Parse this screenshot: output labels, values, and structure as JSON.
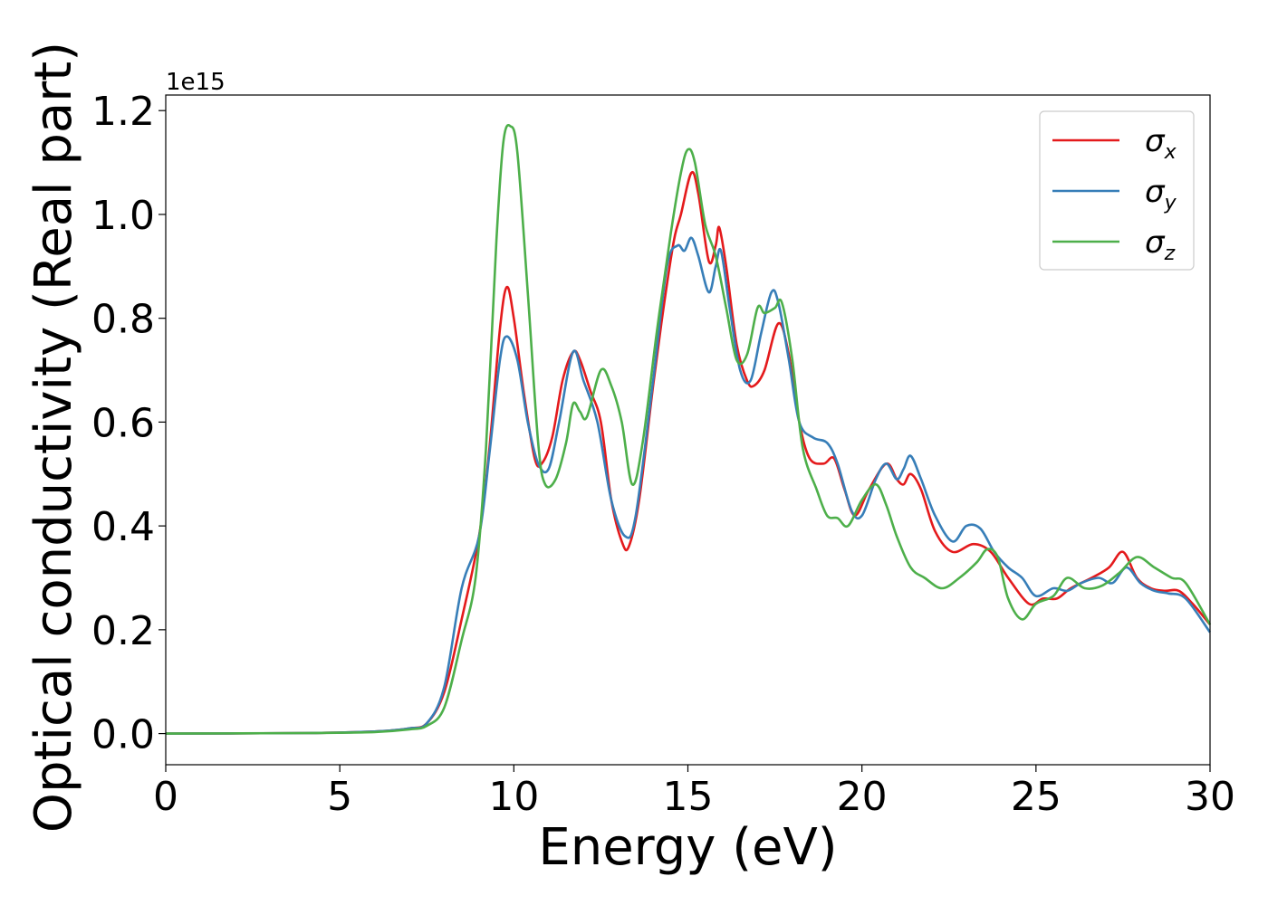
{
  "chart_data": {
    "type": "line",
    "xlabel": "Energy (eV)",
    "ylabel": "Optical conductivity (Real part)",
    "y_offset_label": "1e15",
    "xlim": [
      0,
      30
    ],
    "ylim": [
      -0.06,
      1.23
    ],
    "x_ticks": [
      0,
      5,
      10,
      15,
      20,
      25,
      30
    ],
    "y_ticks": [
      0.0,
      0.2,
      0.4,
      0.6,
      0.8,
      1.0,
      1.2
    ],
    "x_tick_labels": [
      "0",
      "5",
      "10",
      "15",
      "20",
      "25",
      "30"
    ],
    "y_tick_labels": [
      "0.0",
      "0.2",
      "0.4",
      "0.6",
      "0.8",
      "1.0",
      "1.2"
    ],
    "grid": false,
    "legend_position": "top-right",
    "series": [
      {
        "name": "σx",
        "base": "σ",
        "sub": "x",
        "color": "#e41a1c",
        "points": [
          [
            0,
            0
          ],
          [
            4,
            0.001
          ],
          [
            6,
            0.004
          ],
          [
            7,
            0.01
          ],
          [
            7.5,
            0.02
          ],
          [
            8,
            0.08
          ],
          [
            8.5,
            0.22
          ],
          [
            9,
            0.38
          ],
          [
            9.3,
            0.55
          ],
          [
            9.6,
            0.78
          ],
          [
            9.8,
            0.86
          ],
          [
            10,
            0.8
          ],
          [
            10.3,
            0.65
          ],
          [
            10.6,
            0.53
          ],
          [
            10.8,
            0.52
          ],
          [
            11.1,
            0.57
          ],
          [
            11.4,
            0.68
          ],
          [
            11.7,
            0.735
          ],
          [
            11.9,
            0.72
          ],
          [
            12.2,
            0.66
          ],
          [
            12.5,
            0.6
          ],
          [
            12.8,
            0.45
          ],
          [
            13.1,
            0.37
          ],
          [
            13.3,
            0.36
          ],
          [
            13.6,
            0.45
          ],
          [
            14,
            0.67
          ],
          [
            14.3,
            0.82
          ],
          [
            14.6,
            0.95
          ],
          [
            14.8,
            1.0
          ],
          [
            15.1,
            1.08
          ],
          [
            15.3,
            1.04
          ],
          [
            15.6,
            0.91
          ],
          [
            15.8,
            0.94
          ],
          [
            15.9,
            0.975
          ],
          [
            16.1,
            0.9
          ],
          [
            16.4,
            0.75
          ],
          [
            16.7,
            0.68
          ],
          [
            16.9,
            0.67
          ],
          [
            17.2,
            0.7
          ],
          [
            17.6,
            0.79
          ],
          [
            17.9,
            0.73
          ],
          [
            18.2,
            0.6
          ],
          [
            18.5,
            0.53
          ],
          [
            18.9,
            0.52
          ],
          [
            19.2,
            0.53
          ],
          [
            19.5,
            0.47
          ],
          [
            19.8,
            0.42
          ],
          [
            20.2,
            0.47
          ],
          [
            20.7,
            0.52
          ],
          [
            21.0,
            0.49
          ],
          [
            21.2,
            0.48
          ],
          [
            21.4,
            0.5
          ],
          [
            21.7,
            0.47
          ],
          [
            22.1,
            0.39
          ],
          [
            22.6,
            0.35
          ],
          [
            23.2,
            0.365
          ],
          [
            23.7,
            0.35
          ],
          [
            24.2,
            0.3
          ],
          [
            24.8,
            0.25
          ],
          [
            25.2,
            0.26
          ],
          [
            25.6,
            0.26
          ],
          [
            26,
            0.28
          ],
          [
            26.6,
            0.3
          ],
          [
            27.1,
            0.32
          ],
          [
            27.5,
            0.35
          ],
          [
            27.9,
            0.3
          ],
          [
            28.3,
            0.28
          ],
          [
            28.7,
            0.275
          ],
          [
            29.1,
            0.275
          ],
          [
            29.5,
            0.25
          ],
          [
            30,
            0.21
          ]
        ]
      },
      {
        "name": "σy",
        "base": "σ",
        "sub": "y",
        "color": "#377eb8",
        "points": [
          [
            0,
            0
          ],
          [
            4,
            0.001
          ],
          [
            6,
            0.004
          ],
          [
            7,
            0.01
          ],
          [
            7.5,
            0.02
          ],
          [
            8,
            0.09
          ],
          [
            8.5,
            0.28
          ],
          [
            9,
            0.38
          ],
          [
            9.3,
            0.54
          ],
          [
            9.6,
            0.72
          ],
          [
            9.8,
            0.765
          ],
          [
            10.1,
            0.72
          ],
          [
            10.4,
            0.6
          ],
          [
            10.7,
            0.52
          ],
          [
            11,
            0.51
          ],
          [
            11.3,
            0.6
          ],
          [
            11.7,
            0.735
          ],
          [
            12,
            0.68
          ],
          [
            12.4,
            0.6
          ],
          [
            12.8,
            0.45
          ],
          [
            13.2,
            0.38
          ],
          [
            13.5,
            0.42
          ],
          [
            14,
            0.68
          ],
          [
            14.4,
            0.9
          ],
          [
            14.7,
            0.94
          ],
          [
            14.9,
            0.93
          ],
          [
            15.1,
            0.955
          ],
          [
            15.3,
            0.92
          ],
          [
            15.6,
            0.85
          ],
          [
            15.8,
            0.9
          ],
          [
            15.95,
            0.93
          ],
          [
            16.2,
            0.82
          ],
          [
            16.5,
            0.7
          ],
          [
            16.8,
            0.68
          ],
          [
            17.1,
            0.77
          ],
          [
            17.4,
            0.85
          ],
          [
            17.6,
            0.83
          ],
          [
            17.9,
            0.72
          ],
          [
            18.2,
            0.6
          ],
          [
            18.6,
            0.57
          ],
          [
            19,
            0.56
          ],
          [
            19.3,
            0.52
          ],
          [
            19.7,
            0.43
          ],
          [
            20,
            0.42
          ],
          [
            20.4,
            0.49
          ],
          [
            20.7,
            0.52
          ],
          [
            21,
            0.49
          ],
          [
            21.2,
            0.51
          ],
          [
            21.4,
            0.535
          ],
          [
            21.7,
            0.49
          ],
          [
            22.1,
            0.42
          ],
          [
            22.6,
            0.37
          ],
          [
            23,
            0.4
          ],
          [
            23.4,
            0.395
          ],
          [
            23.8,
            0.35
          ],
          [
            24.2,
            0.32
          ],
          [
            24.6,
            0.3
          ],
          [
            25,
            0.265
          ],
          [
            25.5,
            0.28
          ],
          [
            25.9,
            0.275
          ],
          [
            26.3,
            0.29
          ],
          [
            26.8,
            0.3
          ],
          [
            27.2,
            0.29
          ],
          [
            27.6,
            0.32
          ],
          [
            28,
            0.29
          ],
          [
            28.4,
            0.275
          ],
          [
            28.8,
            0.27
          ],
          [
            29.3,
            0.26
          ],
          [
            30,
            0.195
          ]
        ]
      },
      {
        "name": "σz",
        "base": "σ",
        "sub": "z",
        "color": "#4daf4a",
        "points": [
          [
            0,
            0
          ],
          [
            4,
            0.001
          ],
          [
            6,
            0.003
          ],
          [
            7,
            0.008
          ],
          [
            7.5,
            0.015
          ],
          [
            8,
            0.05
          ],
          [
            8.5,
            0.18
          ],
          [
            8.9,
            0.3
          ],
          [
            9.2,
            0.55
          ],
          [
            9.5,
            0.95
          ],
          [
            9.7,
            1.14
          ],
          [
            9.9,
            1.17
          ],
          [
            10.1,
            1.12
          ],
          [
            10.4,
            0.85
          ],
          [
            10.7,
            0.56
          ],
          [
            10.9,
            0.48
          ],
          [
            11.2,
            0.49
          ],
          [
            11.5,
            0.56
          ],
          [
            11.7,
            0.635
          ],
          [
            11.9,
            0.62
          ],
          [
            12.1,
            0.61
          ],
          [
            12.5,
            0.7
          ],
          [
            12.8,
            0.67
          ],
          [
            13.1,
            0.6
          ],
          [
            13.4,
            0.48
          ],
          [
            13.7,
            0.56
          ],
          [
            14.1,
            0.77
          ],
          [
            14.5,
            0.96
          ],
          [
            14.8,
            1.08
          ],
          [
            15,
            1.125
          ],
          [
            15.2,
            1.1
          ],
          [
            15.5,
            0.98
          ],
          [
            15.8,
            0.92
          ],
          [
            16.1,
            0.82
          ],
          [
            16.4,
            0.72
          ],
          [
            16.7,
            0.73
          ],
          [
            17,
            0.82
          ],
          [
            17.2,
            0.81
          ],
          [
            17.5,
            0.82
          ],
          [
            17.7,
            0.83
          ],
          [
            18,
            0.72
          ],
          [
            18.3,
            0.55
          ],
          [
            18.7,
            0.47
          ],
          [
            19,
            0.42
          ],
          [
            19.3,
            0.415
          ],
          [
            19.6,
            0.4
          ],
          [
            20,
            0.45
          ],
          [
            20.4,
            0.48
          ],
          [
            20.7,
            0.44
          ],
          [
            21,
            0.38
          ],
          [
            21.4,
            0.32
          ],
          [
            21.8,
            0.3
          ],
          [
            22.3,
            0.28
          ],
          [
            22.8,
            0.3
          ],
          [
            23.3,
            0.33
          ],
          [
            23.6,
            0.355
          ],
          [
            23.9,
            0.34
          ],
          [
            24.2,
            0.26
          ],
          [
            24.6,
            0.22
          ],
          [
            25,
            0.25
          ],
          [
            25.5,
            0.265
          ],
          [
            25.9,
            0.3
          ],
          [
            26.4,
            0.28
          ],
          [
            26.9,
            0.285
          ],
          [
            27.4,
            0.31
          ],
          [
            27.9,
            0.34
          ],
          [
            28.4,
            0.32
          ],
          [
            28.9,
            0.3
          ],
          [
            29.3,
            0.29
          ],
          [
            30,
            0.21
          ]
        ]
      }
    ]
  }
}
